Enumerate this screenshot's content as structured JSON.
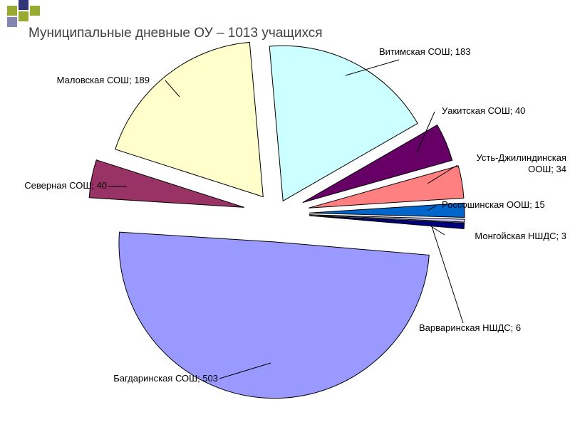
{
  "slide": {
    "title": "Муниципальные дневные ОУ – 1013 учащихся",
    "accent_square_colors": [
      "#99aa33",
      "#33337a"
    ]
  },
  "chart_data": {
    "type": "pie",
    "exploded": true,
    "title": "Муниципальные дневные ОУ – 1013 учащихся",
    "total": 1013,
    "slices": [
      {
        "name": "Витимская СОШ",
        "label": "Витимская СОШ; 183",
        "value": 183,
        "color": "#ccffff"
      },
      {
        "name": "Уакитская СОШ",
        "label": "Уакитская СОШ; 40",
        "value": 40,
        "color": "#660066"
      },
      {
        "name": "Усть-Джилиндинская ООШ",
        "label": "Усть-Джилиндинская ООШ; 34",
        "label_lines": [
          "Усть-Джилиндинская",
          "ООШ; 34"
        ],
        "value": 34,
        "color": "#ff8080"
      },
      {
        "name": "Россошинская ООШ",
        "label": "Россошинская ООШ; 15",
        "value": 15,
        "color": "#0066cc"
      },
      {
        "name": "Монгойская НШДС",
        "label": "Монгойская НШДС; 3",
        "value": 3,
        "color": "#ccccff"
      },
      {
        "name": "Варваринская НШДС",
        "label": "Варваринская НШДС; 6",
        "value": 6,
        "color": "#000080"
      },
      {
        "name": "Багдаринская СОШ",
        "label": "Багдаринская СОШ; 503",
        "value": 503,
        "color": "#9999ff"
      },
      {
        "name": "Северная СОШ",
        "label": "Северная СОШ; 40",
        "value": 40,
        "color": "#993366"
      },
      {
        "name": "Маловская СОШ",
        "label": "Маловская СОШ; 189",
        "value": 189,
        "color": "#ffffcc"
      }
    ]
  }
}
